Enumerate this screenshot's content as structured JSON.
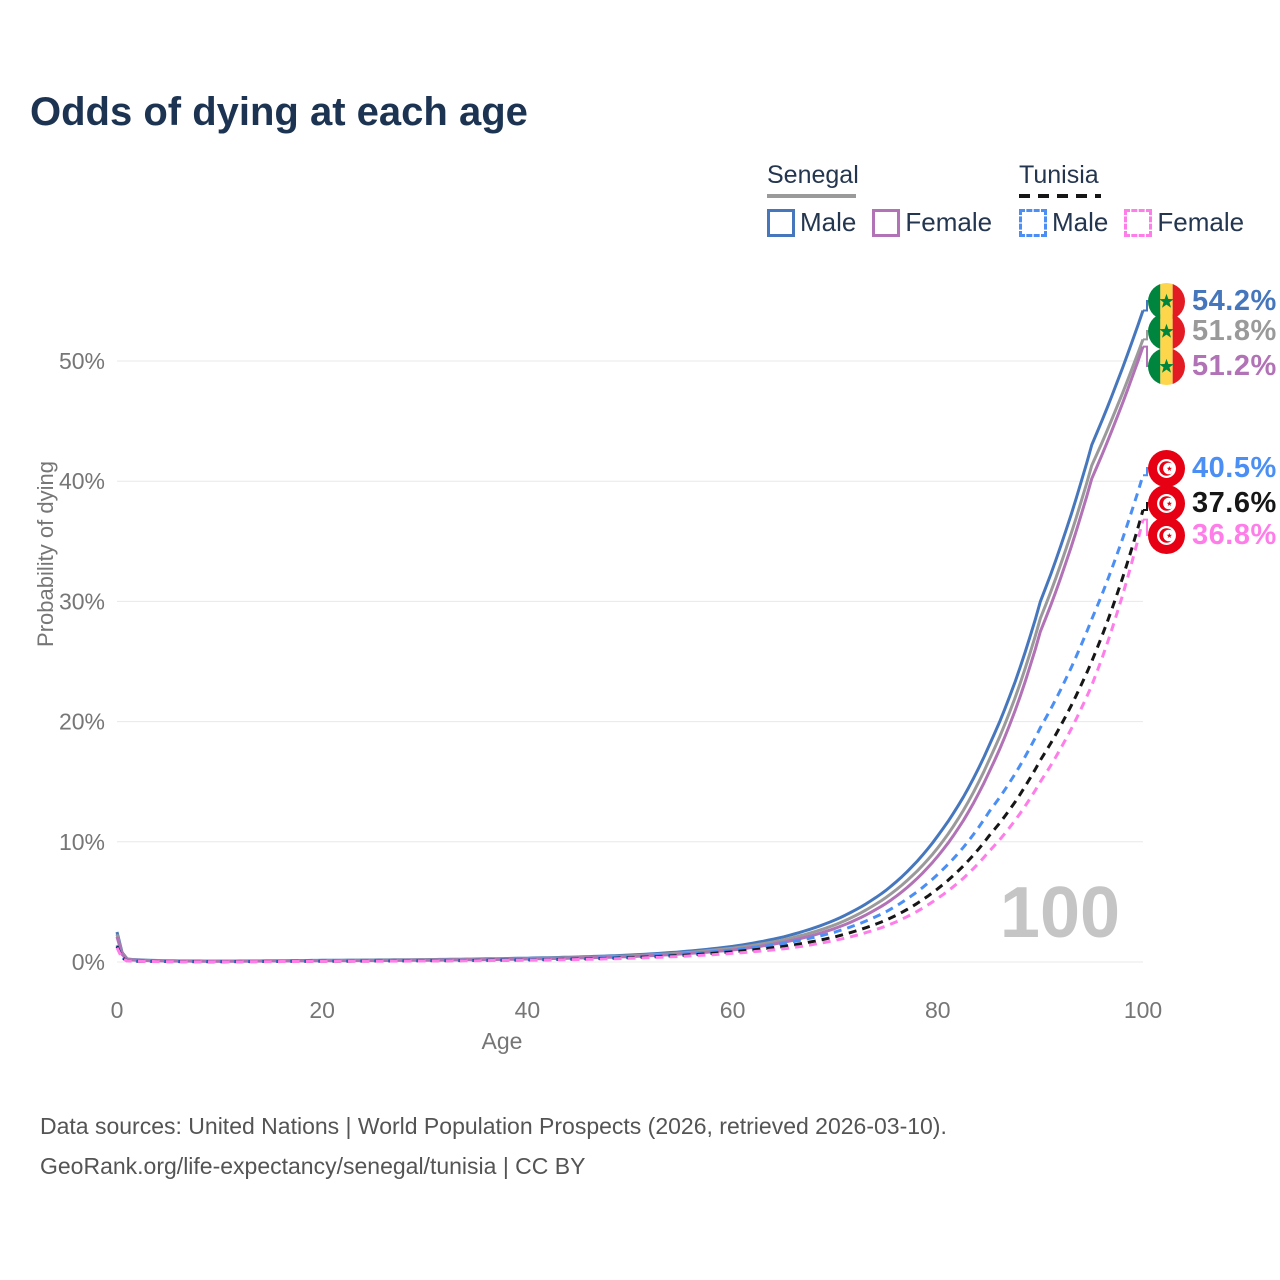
{
  "title": "Odds of dying at each age",
  "legend": {
    "groups": [
      {
        "country": "Senegal",
        "line_style": "solid",
        "header_swatch_color": "#9a9a9a",
        "items": [
          {
            "label": "Male",
            "color": "#4677bd"
          },
          {
            "label": "Female",
            "color": "#b272b6"
          }
        ]
      },
      {
        "country": "Tunisia",
        "line_style": "dashed",
        "header_swatch_color": "#161616",
        "items": [
          {
            "label": "Male",
            "color": "#4b8ff5"
          },
          {
            "label": "Female",
            "color": "#ff7de9"
          }
        ]
      }
    ]
  },
  "watermark_age": "100",
  "caption": {
    "line1": "Data sources: United Nations | World Population Prospects (2026, retrieved 2026-03-10).",
    "line2": "GeoRank.org/life-expectancy/senegal/tunisia | CC BY"
  },
  "chart_data": {
    "type": "line",
    "title": "Odds of dying at each age",
    "xlabel": "Age",
    "ylabel": "Probability of dying",
    "xlim": [
      0,
      100
    ],
    "ylim_percent": [
      0,
      55
    ],
    "x_ticks": [
      0,
      20,
      40,
      60,
      80,
      100
    ],
    "y_ticks_percent": [
      0,
      10,
      20,
      30,
      40,
      50
    ],
    "y_tick_suffix": "%",
    "grid": true,
    "legend_position": "top-right",
    "ages": [
      0,
      1,
      2,
      5,
      10,
      15,
      20,
      25,
      30,
      35,
      40,
      45,
      50,
      55,
      60,
      65,
      70,
      75,
      80,
      85,
      90,
      95,
      100
    ],
    "series": [
      {
        "name": "Senegal Male",
        "country": "Senegal",
        "sex": "Male",
        "color": "#4677bd",
        "dash": "solid",
        "flag": "senegal",
        "end_label": "54.2%",
        "end_value_percent": 54.2,
        "values_percent": [
          2.5,
          0.25,
          0.18,
          0.1,
          0.08,
          0.1,
          0.14,
          0.17,
          0.2,
          0.25,
          0.32,
          0.42,
          0.58,
          0.85,
          1.3,
          2.1,
          3.5,
          6.0,
          10.5,
          18.0,
          30.0,
          43.0,
          54.2
        ]
      },
      {
        "name": "Senegal Both sexes",
        "country": "Senegal",
        "sex": "Both",
        "color": "#9a9a9a",
        "dash": "solid",
        "flag": "senegal",
        "end_label": "51.8%",
        "end_value_percent": 51.8,
        "values_percent": [
          2.3,
          0.22,
          0.16,
          0.09,
          0.07,
          0.09,
          0.12,
          0.15,
          0.18,
          0.22,
          0.28,
          0.37,
          0.51,
          0.75,
          1.15,
          1.85,
          3.1,
          5.4,
          9.5,
          16.8,
          28.6,
          41.3,
          51.8
        ]
      },
      {
        "name": "Senegal Female",
        "country": "Senegal",
        "sex": "Female",
        "color": "#b272b6",
        "dash": "solid",
        "flag": "senegal",
        "end_label": "51.2%",
        "end_value_percent": 51.2,
        "values_percent": [
          2.1,
          0.19,
          0.14,
          0.08,
          0.06,
          0.08,
          0.1,
          0.12,
          0.15,
          0.19,
          0.25,
          0.33,
          0.45,
          0.67,
          1.0,
          1.65,
          2.8,
          4.9,
          8.8,
          15.8,
          27.5,
          40.2,
          51.2
        ]
      },
      {
        "name": "Tunisia Male",
        "country": "Tunisia",
        "sex": "Male",
        "color": "#4b8ff5",
        "dash": "dashed",
        "flag": "tunisia",
        "end_label": "40.5%",
        "end_value_percent": 40.5,
        "values_percent": [
          1.4,
          0.1,
          0.07,
          0.04,
          0.03,
          0.05,
          0.08,
          0.1,
          0.12,
          0.15,
          0.2,
          0.28,
          0.42,
          0.65,
          1.0,
          1.55,
          2.5,
          4.2,
          7.3,
          12.5,
          19.5,
          28.5,
          40.5
        ]
      },
      {
        "name": "Tunisia Both sexes",
        "country": "Tunisia",
        "sex": "Both",
        "color": "#161616",
        "dash": "dashed",
        "flag": "tunisia",
        "end_label": "37.6%",
        "end_value_percent": 37.6,
        "values_percent": [
          1.3,
          0.09,
          0.06,
          0.035,
          0.027,
          0.04,
          0.06,
          0.08,
          0.1,
          0.13,
          0.17,
          0.24,
          0.36,
          0.55,
          0.85,
          1.3,
          2.1,
          3.5,
          6.1,
          10.5,
          16.8,
          25.0,
          37.6
        ]
      },
      {
        "name": "Tunisia Female",
        "country": "Tunisia",
        "sex": "Female",
        "color": "#ff7de9",
        "dash": "dashed",
        "flag": "tunisia",
        "end_label": "36.8%",
        "end_value_percent": 36.8,
        "values_percent": [
          1.2,
          0.08,
          0.055,
          0.03,
          0.024,
          0.035,
          0.05,
          0.065,
          0.085,
          0.11,
          0.15,
          0.21,
          0.31,
          0.47,
          0.72,
          1.1,
          1.8,
          3.0,
          5.3,
          9.2,
          15.0,
          23.0,
          36.8
        ]
      }
    ]
  }
}
